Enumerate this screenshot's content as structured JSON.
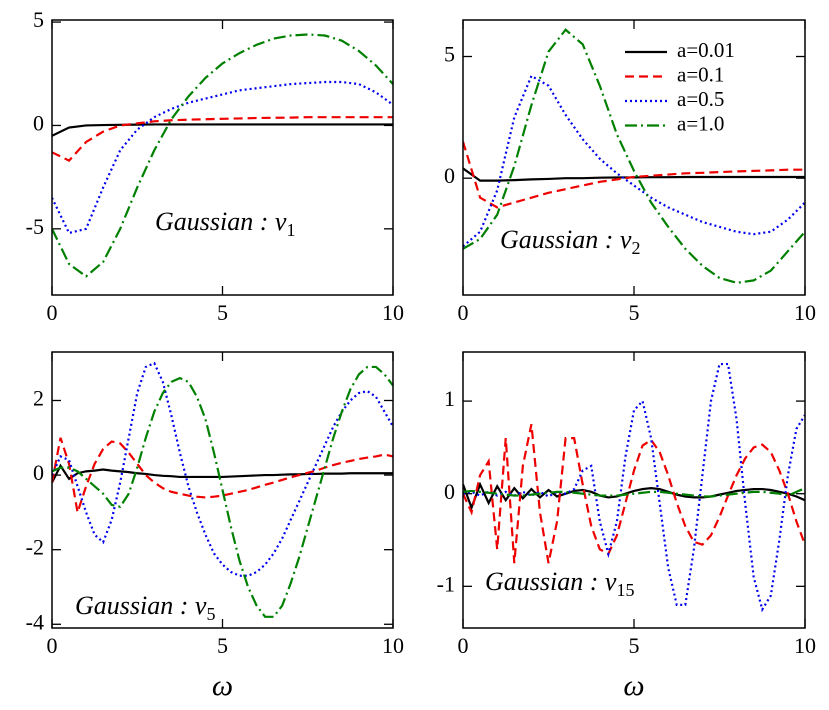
{
  "chart_data": [
    {
      "type": "line",
      "xlim": [
        0,
        10
      ],
      "xticks": [
        0,
        5,
        10
      ],
      "ylim": [
        -8.2,
        5.1
      ],
      "yticks": [
        -5,
        0,
        5
      ],
      "annotation": "Gaussian : v",
      "annotation_sub": "1",
      "x": [
        0,
        0.5,
        1,
        1.5,
        2,
        2.5,
        3,
        3.5,
        4,
        4.5,
        5,
        5.5,
        6,
        6.5,
        7,
        7.5,
        8,
        8.5,
        9,
        9.5,
        10
      ],
      "series": [
        {
          "name": "a=0.01",
          "color": "#000000",
          "linestyle": "solid",
          "values": [
            -0.5,
            -0.1,
            0,
            0.02,
            0.03,
            0.04,
            0.05,
            0.05,
            0.05,
            0.05,
            0.05,
            0.05,
            0.05,
            0.05,
            0.05,
            0.05,
            0.05,
            0.05,
            0.05,
            0.05,
            0.05
          ]
        },
        {
          "name": "a=0.1",
          "color": "#ee0000",
          "linestyle": "dashed",
          "values": [
            -1.3,
            -1.7,
            -0.8,
            -0.3,
            0,
            0.1,
            0.2,
            0.25,
            0.28,
            0.3,
            0.32,
            0.34,
            0.36,
            0.37,
            0.38,
            0.4,
            0.4,
            0.4,
            0.4,
            0.4,
            0.4
          ]
        },
        {
          "name": "a=0.5",
          "color": "#0000ee",
          "linestyle": "dotted",
          "values": [
            -3.5,
            -5.2,
            -5,
            -3,
            -1.2,
            -0.2,
            0.4,
            0.8,
            1.1,
            1.3,
            1.5,
            1.7,
            1.8,
            1.9,
            2.0,
            2.05,
            2.1,
            2.1,
            2.0,
            1.6,
            1.0
          ]
        },
        {
          "name": "a=1.0",
          "color": "#008000",
          "linestyle": "dashdot",
          "values": [
            -5,
            -6.7,
            -7.3,
            -6.6,
            -5,
            -3,
            -1.2,
            0.3,
            1.4,
            2.3,
            3,
            3.5,
            3.9,
            4.2,
            4.35,
            4.4,
            4.35,
            4.1,
            3.6,
            2.9,
            2.0
          ]
        }
      ]
    },
    {
      "type": "line",
      "xlim": [
        0,
        10
      ],
      "xticks": [
        0,
        5,
        10
      ],
      "ylim": [
        -4.8,
        6.5
      ],
      "yticks": [
        0,
        5
      ],
      "annotation": "Gaussian : v",
      "annotation_sub": "2",
      "legend": "upper right",
      "x": [
        0,
        0.5,
        1,
        1.5,
        2,
        2.5,
        3,
        3.5,
        4,
        4.5,
        5,
        5.5,
        6,
        6.5,
        7,
        7.5,
        8,
        8.5,
        9,
        9.5,
        10
      ],
      "series": [
        {
          "name": "a=0.01",
          "color": "#000000",
          "linestyle": "solid",
          "values": [
            0.4,
            -0.1,
            -0.1,
            -0.08,
            -0.05,
            -0.03,
            0,
            0,
            0.02,
            0.03,
            0.03,
            0.04,
            0.04,
            0.05,
            0.05,
            0.05,
            0.05,
            0.05,
            0.05,
            0.05,
            0.05
          ]
        },
        {
          "name": "a=0.1",
          "color": "#ee0000",
          "linestyle": "dashed",
          "values": [
            1.5,
            -0.8,
            -1.2,
            -1.0,
            -0.8,
            -0.6,
            -0.45,
            -0.3,
            -0.15,
            -0.05,
            0.05,
            0.1,
            0.15,
            0.2,
            0.22,
            0.25,
            0.28,
            0.3,
            0.32,
            0.35,
            0.35
          ]
        },
        {
          "name": "a=0.5",
          "color": "#0000ee",
          "linestyle": "dotted",
          "values": [
            -2.8,
            -2.2,
            -0.5,
            2.5,
            4.2,
            3.8,
            2.6,
            1.6,
            0.8,
            0.2,
            -0.3,
            -0.8,
            -1.2,
            -1.5,
            -1.8,
            -2.0,
            -2.2,
            -2.3,
            -2.2,
            -1.7,
            -1.0
          ]
        },
        {
          "name": "a=1.0",
          "color": "#008000",
          "linestyle": "dashdot",
          "values": [
            -2.9,
            -2.5,
            -1.5,
            0.5,
            3,
            5.2,
            6.1,
            5.5,
            3.8,
            1.8,
            0.3,
            -1,
            -2,
            -2.9,
            -3.6,
            -4.1,
            -4.3,
            -4.2,
            -3.8,
            -3.0,
            -2.2
          ]
        }
      ]
    },
    {
      "type": "line",
      "xlim": [
        0,
        10
      ],
      "xticks": [
        0,
        5,
        10
      ],
      "ylim": [
        -4.1,
        3.3
      ],
      "yticks": [
        -4,
        -2,
        0,
        2
      ],
      "annotation": "Gaussian : v",
      "annotation_sub": "5",
      "xlabel": "ω",
      "x": [
        0,
        0.25,
        0.5,
        0.75,
        1,
        1.25,
        1.5,
        1.75,
        2,
        2.25,
        2.5,
        2.75,
        3,
        3.25,
        3.5,
        3.75,
        4,
        4.25,
        4.5,
        4.75,
        5,
        5.25,
        5.5,
        5.75,
        6,
        6.25,
        6.5,
        6.75,
        7,
        7.25,
        7.5,
        7.75,
        8,
        8.25,
        8.5,
        8.75,
        9,
        9.25,
        9.5,
        9.75,
        10
      ],
      "series": [
        {
          "name": "a=0.01",
          "color": "#000000",
          "linestyle": "solid",
          "values": [
            -0.2,
            0.25,
            -0.1,
            0.05,
            0.1,
            0.12,
            0.15,
            0.12,
            0.1,
            0.08,
            0.05,
            0.03,
            0.0,
            -0.02,
            -0.03,
            -0.05,
            -0.05,
            -0.05,
            -0.05,
            -0.05,
            -0.05,
            -0.04,
            -0.03,
            -0.02,
            -0.01,
            0,
            0,
            0.01,
            0.02,
            0.02,
            0.03,
            0.03,
            0.04,
            0.04,
            0.04,
            0.05,
            0.05,
            0.05,
            0.05,
            0.05,
            0.05
          ]
        },
        {
          "name": "a=0.1",
          "color": "#ee0000",
          "linestyle": "dashed",
          "values": [
            -0.2,
            1.0,
            0.3,
            -1.0,
            -0.3,
            0.3,
            0.7,
            0.9,
            0.85,
            0.6,
            0.3,
            0,
            -0.2,
            -0.35,
            -0.45,
            -0.5,
            -0.55,
            -0.58,
            -0.6,
            -0.58,
            -0.55,
            -0.5,
            -0.45,
            -0.4,
            -0.33,
            -0.26,
            -0.2,
            -0.13,
            -0.06,
            0,
            0.06,
            0.12,
            0.2,
            0.27,
            0.33,
            0.38,
            0.43,
            0.47,
            0.5,
            0.55,
            0.5
          ]
        },
        {
          "name": "a=0.5",
          "color": "#0000ee",
          "linestyle": "dotted",
          "values": [
            0,
            0.5,
            0.4,
            -0.3,
            -1.0,
            -1.6,
            -1.8,
            -1.2,
            -0.2,
            1.0,
            2.2,
            2.9,
            3.0,
            2.5,
            1.6,
            0.6,
            -0.3,
            -1.0,
            -1.6,
            -2.1,
            -2.4,
            -2.6,
            -2.7,
            -2.7,
            -2.6,
            -2.4,
            -2.1,
            -1.7,
            -1.2,
            -0.7,
            -0.2,
            0.3,
            0.8,
            1.3,
            1.7,
            2.0,
            2.2,
            2.25,
            2.1,
            1.7,
            1.3
          ]
        },
        {
          "name": "a=1.0",
          "color": "#008000",
          "linestyle": "dashdot",
          "values": [
            0.1,
            0.2,
            0.2,
            0.1,
            -0.1,
            -0.3,
            -0.5,
            -0.8,
            -0.85,
            -0.5,
            0.2,
            1.0,
            1.7,
            2.2,
            2.5,
            2.6,
            2.5,
            2.1,
            1.5,
            0.6,
            -0.4,
            -1.4,
            -2.3,
            -3.0,
            -3.5,
            -3.8,
            -3.8,
            -3.5,
            -2.9,
            -2.2,
            -1.4,
            -0.6,
            0.2,
            1.0,
            1.7,
            2.3,
            2.7,
            2.9,
            2.9,
            2.7,
            2.4
          ]
        }
      ]
    },
    {
      "type": "line",
      "xlim": [
        0,
        10
      ],
      "xticks": [
        0,
        5,
        10
      ],
      "ylim": [
        -1.45,
        1.53
      ],
      "yticks": [
        -1,
        0,
        1
      ],
      "annotation": "Gaussian : v",
      "annotation_sub": "15",
      "xlabel": "ω",
      "x": [
        0,
        0.25,
        0.5,
        0.75,
        1,
        1.25,
        1.5,
        1.75,
        2,
        2.25,
        2.5,
        2.75,
        3,
        3.25,
        3.5,
        3.75,
        4,
        4.25,
        4.5,
        4.75,
        5,
        5.25,
        5.5,
        5.75,
        6,
        6.25,
        6.5,
        6.75,
        7,
        7.25,
        7.5,
        7.75,
        8,
        8.25,
        8.5,
        8.75,
        9,
        9.25,
        9.5,
        9.75,
        10
      ],
      "series": [
        {
          "name": "a=0.01",
          "color": "#000000",
          "linestyle": "solid",
          "values": [
            0.1,
            -0.15,
            0.1,
            -0.1,
            0.08,
            -0.07,
            0.06,
            -0.05,
            0.05,
            -0.04,
            0.04,
            -0.03,
            0.0,
            0.03,
            0.04,
            0.02,
            -0.02,
            -0.04,
            -0.03,
            0,
            0.03,
            0.05,
            0.06,
            0.05,
            0.02,
            -0.01,
            -0.03,
            -0.04,
            -0.04,
            -0.03,
            -0.01,
            0.01,
            0.03,
            0.04,
            0.05,
            0.05,
            0.04,
            0.02,
            0,
            -0.03,
            -0.07
          ]
        },
        {
          "name": "a=0.1",
          "color": "#ee0000",
          "linestyle": "dashed",
          "values": [
            0,
            -0.2,
            0.2,
            0.35,
            -0.6,
            0.6,
            -0.75,
            0.3,
            0.75,
            -0.2,
            -0.75,
            -0.3,
            0.6,
            0.6,
            0.1,
            -0.35,
            -0.6,
            -0.65,
            -0.45,
            -0.1,
            0.25,
            0.52,
            0.58,
            0.45,
            0.2,
            -0.1,
            -0.35,
            -0.52,
            -0.55,
            -0.45,
            -0.25,
            -0.02,
            0.2,
            0.38,
            0.5,
            0.53,
            0.45,
            0.25,
            0,
            -0.3,
            -0.55
          ]
        },
        {
          "name": "a=0.5",
          "color": "#0000ee",
          "linestyle": "dotted",
          "values": [
            0,
            0.02,
            -0.02,
            0.02,
            -0.02,
            0.02,
            -0.02,
            0.02,
            -0.02,
            0.02,
            -0.03,
            0.02,
            0,
            0.05,
            0.25,
            0.3,
            -0.3,
            -0.65,
            -0.3,
            0.4,
            0.9,
            1.0,
            0.6,
            -0.1,
            -0.8,
            -1.2,
            -1.2,
            -0.6,
            0.2,
            1.0,
            1.4,
            1.4,
            0.8,
            -0.1,
            -0.9,
            -1.25,
            -1.1,
            -0.5,
            0.2,
            0.7,
            0.85
          ]
        },
        {
          "name": "a=1.0",
          "color": "#008000",
          "linestyle": "dashdot",
          "values": [
            0.02,
            0.03,
            0.02,
            0.01,
            0,
            -0.01,
            -0.02,
            -0.02,
            -0.01,
            0,
            0.01,
            0.02,
            0.02,
            0.01,
            0,
            -0.01,
            -0.02,
            -0.02,
            -0.02,
            -0.01,
            0,
            0.01,
            0.02,
            0.02,
            0.01,
            0,
            -0.01,
            -0.02,
            -0.03,
            -0.03,
            -0.02,
            -0.01,
            0,
            0.01,
            0.02,
            0.02,
            0.01,
            0,
            -0.02,
            0.02,
            0.06
          ]
        }
      ]
    }
  ]
}
